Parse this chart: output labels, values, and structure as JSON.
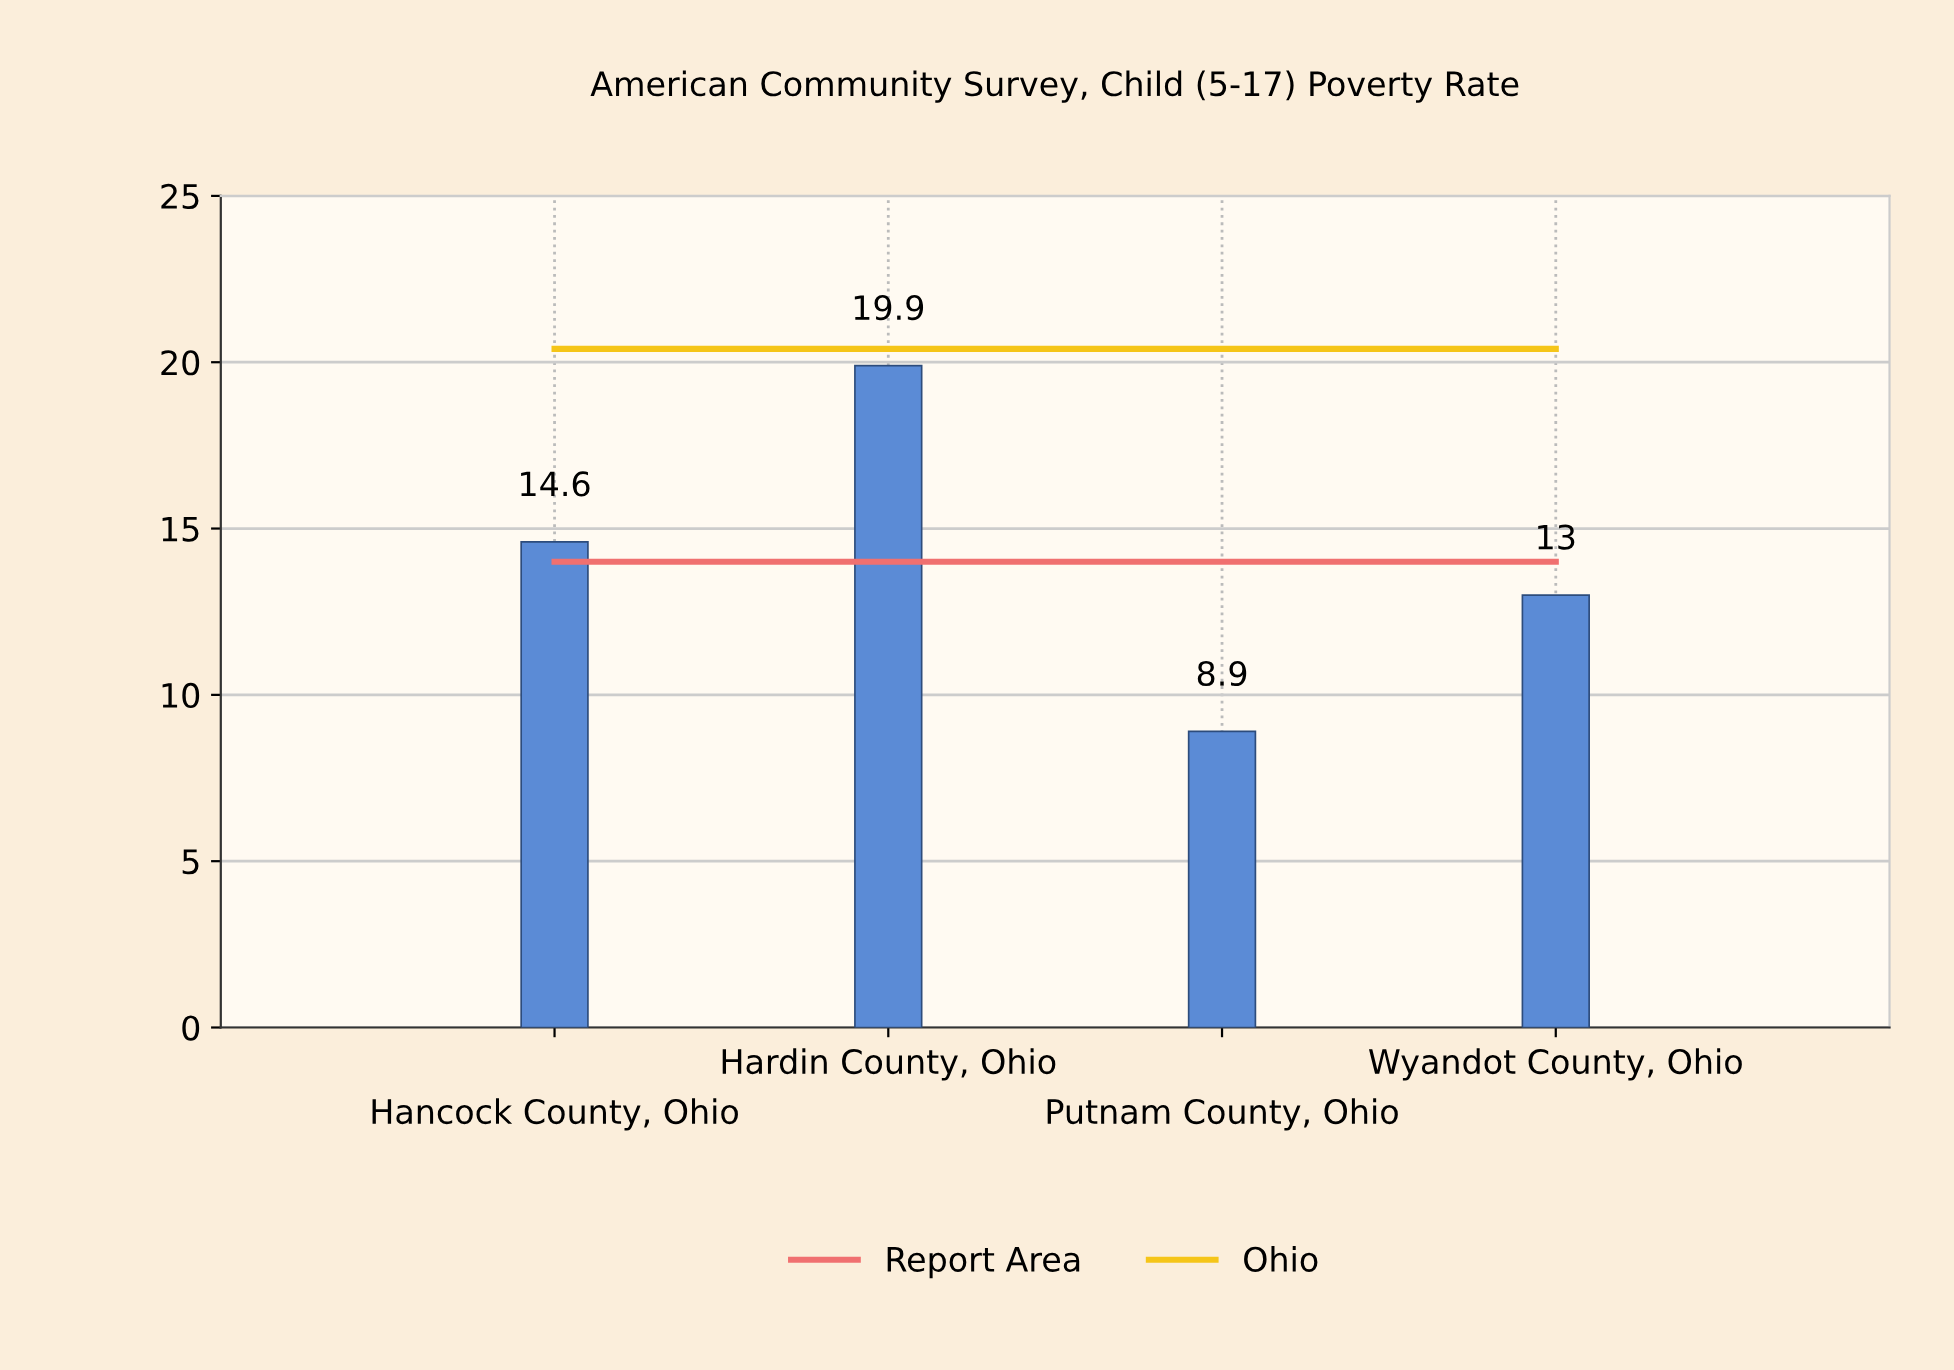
{
  "chart_data": {
    "type": "bar",
    "title": "American Community Survey, Child (5-17) Poverty Rate",
    "categories": [
      "Hancock County, Ohio",
      "Hardin County, Ohio",
      "Putnam County, Ohio",
      "Wyandot County, Ohio"
    ],
    "series": [
      {
        "color": "#5b8bd6",
        "values": [
          14.6,
          19.9,
          8.9,
          13
        ],
        "data_labels": true
      },
      {
        "type": "line",
        "name": "Report Area",
        "color": "#f07070",
        "values": [
          14.0,
          14.0,
          14.0,
          14.0
        ]
      },
      {
        "type": "line",
        "name": "Ohio",
        "color": "#f5c518",
        "values": [
          20.4,
          20.4,
          20.4,
          20.4
        ]
      }
    ],
    "ylim": [
      0,
      25
    ],
    "yticks": [
      0,
      5,
      10,
      15,
      20,
      25
    ],
    "grid": true,
    "legend": "bottom"
  }
}
